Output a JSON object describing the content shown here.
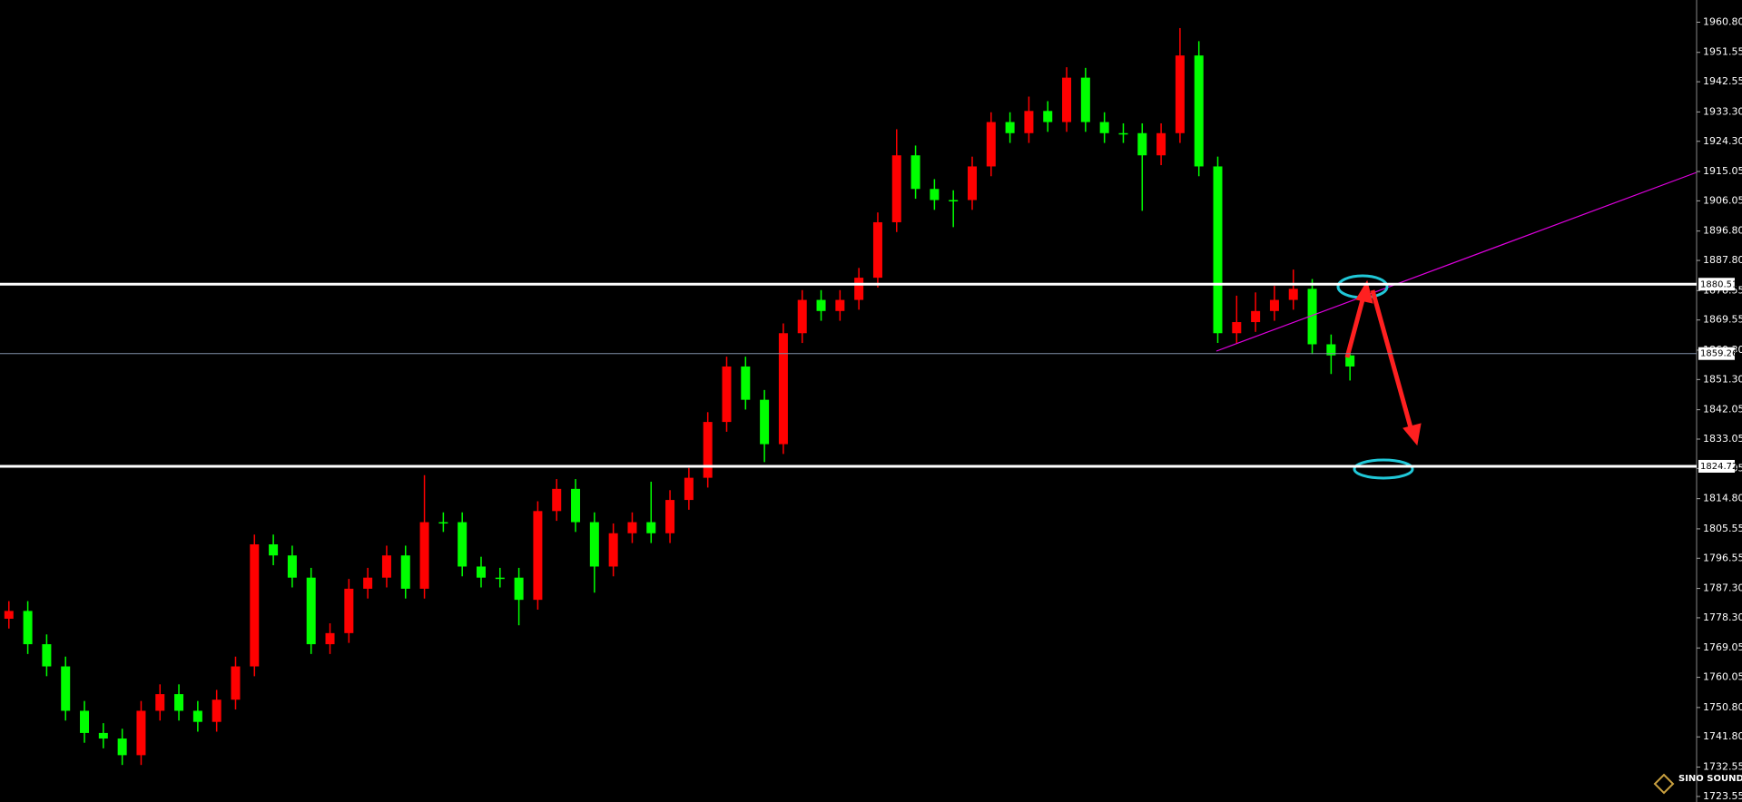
{
  "chart_data": {
    "type": "candlestick",
    "bull_color": "#ff0000",
    "bear_color": "#00ff00",
    "open": [
      1778.0,
      1780.4,
      1770.2,
      1763.4,
      1749.8,
      1743.0,
      1741.3,
      1736.2,
      1749.8,
      1754.9,
      1749.8,
      1746.4,
      1753.2,
      1763.4,
      1800.8,
      1797.4,
      1790.6,
      1770.2,
      1773.6,
      1787.2,
      1790.6,
      1797.4,
      1787.2,
      1807.6,
      1807.6,
      1794.0,
      1790.6,
      1790.6,
      1783.8,
      1811.0,
      1817.8,
      1807.6,
      1794.0,
      1804.2,
      1807.6,
      1804.2,
      1814.4,
      1821.2,
      1838.3,
      1855.3,
      1845.1,
      1831.5,
      1865.5,
      1875.7,
      1872.3,
      1875.7,
      1882.5,
      1899.5,
      1920.0,
      1909.7,
      1906.3,
      1906.3,
      1916.6,
      1930.2,
      1926.8,
      1933.6,
      1930.2,
      1943.8,
      1930.2,
      1926.8,
      1926.8,
      1920.0,
      1926.8,
      1950.6,
      1916.6,
      1865.5,
      1868.9,
      1872.3,
      1875.7,
      1879.1,
      1862.1,
      1858.7
    ],
    "high": [
      1783.4,
      1783.4,
      1773.2,
      1766.4,
      1752.8,
      1746.0,
      1744.3,
      1752.8,
      1757.9,
      1757.9,
      1752.8,
      1756.2,
      1766.4,
      1803.8,
      1803.8,
      1800.4,
      1793.6,
      1776.6,
      1790.2,
      1793.6,
      1800.4,
      1800.4,
      1822.0,
      1810.6,
      1810.6,
      1797.0,
      1793.6,
      1793.6,
      1814.0,
      1820.8,
      1820.8,
      1810.6,
      1807.2,
      1810.6,
      1820.0,
      1817.4,
      1824.2,
      1841.3,
      1858.3,
      1858.3,
      1848.1,
      1868.5,
      1878.7,
      1878.7,
      1878.7,
      1885.5,
      1902.5,
      1928.0,
      1923.0,
      1912.7,
      1909.3,
      1919.6,
      1933.2,
      1933.2,
      1938.0,
      1936.6,
      1947.0,
      1946.8,
      1933.2,
      1929.8,
      1929.8,
      1929.8,
      1959.0,
      1955.0,
      1919.6,
      1877.0,
      1878.0,
      1880.0,
      1885.0,
      1882.1,
      1865.1,
      1861.7
    ],
    "low": [
      1775.0,
      1767.2,
      1760.4,
      1746.8,
      1740.0,
      1738.3,
      1733.2,
      1733.2,
      1746.8,
      1746.8,
      1743.4,
      1743.4,
      1750.2,
      1760.4,
      1794.4,
      1787.6,
      1767.2,
      1767.2,
      1770.6,
      1784.2,
      1787.6,
      1784.2,
      1784.2,
      1804.6,
      1791.0,
      1787.6,
      1787.6,
      1776.0,
      1780.8,
      1808.0,
      1804.6,
      1786.0,
      1791.0,
      1801.2,
      1801.2,
      1801.2,
      1811.4,
      1818.2,
      1835.3,
      1842.1,
      1826.0,
      1828.5,
      1862.5,
      1869.3,
      1869.3,
      1872.7,
      1879.5,
      1896.5,
      1906.7,
      1903.3,
      1898.0,
      1903.3,
      1913.6,
      1923.8,
      1923.8,
      1927.2,
      1927.2,
      1927.2,
      1923.8,
      1923.8,
      1903.0,
      1917.0,
      1923.8,
      1913.6,
      1862.5,
      1862.5,
      1865.9,
      1869.3,
      1872.7,
      1859.1,
      1853.0,
      1851.0
    ],
    "close": [
      1780.4,
      1770.2,
      1763.4,
      1749.8,
      1743.0,
      1741.3,
      1736.2,
      1749.8,
      1754.9,
      1749.8,
      1746.4,
      1753.2,
      1763.4,
      1800.8,
      1797.4,
      1790.6,
      1770.2,
      1773.6,
      1787.2,
      1790.6,
      1797.4,
      1787.2,
      1807.6,
      1807.6,
      1794.0,
      1790.6,
      1790.6,
      1783.8,
      1811.0,
      1817.8,
      1807.6,
      1794.0,
      1804.2,
      1807.6,
      1804.2,
      1814.4,
      1821.2,
      1838.3,
      1855.3,
      1845.1,
      1831.5,
      1865.5,
      1875.7,
      1872.3,
      1875.7,
      1882.5,
      1899.5,
      1920.0,
      1909.7,
      1906.3,
      1906.3,
      1916.6,
      1930.2,
      1926.8,
      1933.6,
      1930.2,
      1943.8,
      1930.2,
      1926.8,
      1926.8,
      1920.0,
      1926.8,
      1950.6,
      1916.6,
      1865.5,
      1868.9,
      1872.3,
      1875.7,
      1879.1,
      1862.1,
      1858.7,
      1855.3
    ],
    "ylim": [
      1721.85,
      1967.6
    ],
    "yticks": [
      {
        "value": 1960.8,
        "label": "1960.80"
      },
      {
        "value": 1951.55,
        "label": "1951.55"
      },
      {
        "value": 1942.55,
        "label": "1942.55"
      },
      {
        "value": 1933.3,
        "label": "1933.30"
      },
      {
        "value": 1924.3,
        "label": "1924.30"
      },
      {
        "value": 1915.05,
        "label": "1915.05"
      },
      {
        "value": 1906.05,
        "label": "1906.05"
      },
      {
        "value": 1896.8,
        "label": "1896.80"
      },
      {
        "value": 1887.8,
        "label": "1887.80"
      },
      {
        "value": 1878.55,
        "label": "1878.55"
      },
      {
        "value": 1869.55,
        "label": "1869.55"
      },
      {
        "value": 1860.3,
        "label": "1860.30"
      },
      {
        "value": 1851.3,
        "label": "1851.30"
      },
      {
        "value": 1842.05,
        "label": "1842.05"
      },
      {
        "value": 1833.05,
        "label": "1833.05"
      },
      {
        "value": 1824.05,
        "label": "1824.05"
      },
      {
        "value": 1814.8,
        "label": "1814.80"
      },
      {
        "value": 1805.55,
        "label": "1805.55"
      },
      {
        "value": 1796.55,
        "label": "1796.55"
      },
      {
        "value": 1787.3,
        "label": "1787.30"
      },
      {
        "value": 1778.3,
        "label": "1778.30"
      },
      {
        "value": 1769.05,
        "label": "1769.05"
      },
      {
        "value": 1760.05,
        "label": "1760.05"
      },
      {
        "value": 1750.8,
        "label": "1750.80"
      },
      {
        "value": 1741.8,
        "label": "1741.80"
      },
      {
        "value": 1732.55,
        "label": "1732.55"
      },
      {
        "value": 1723.55,
        "label": "1723.55"
      }
    ],
    "levels": [
      1880.51,
      1824.72
    ],
    "current_price": 1859.26,
    "watermark": "SINO SOUND"
  }
}
